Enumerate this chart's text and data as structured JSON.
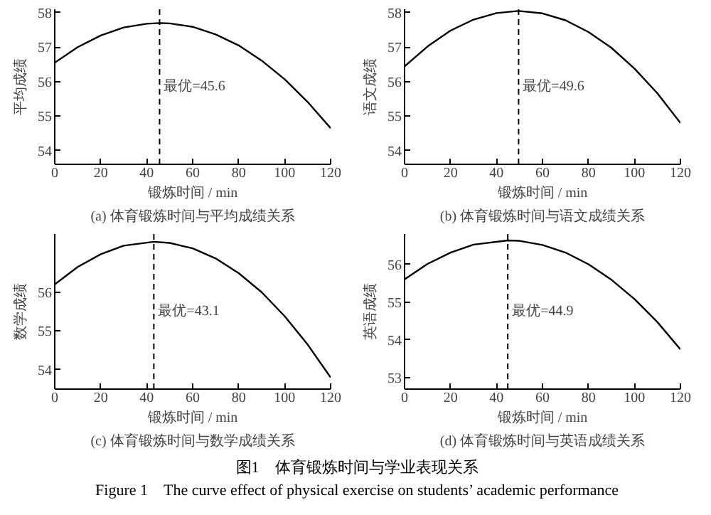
{
  "chart_data": [
    {
      "type": "line",
      "title": "(a) 体育锻炼时间与平均成绩关系",
      "xlabel": "锻炼时间 / min",
      "ylabel": "平均成绩",
      "x": [
        0,
        10,
        20,
        30,
        40,
        45.6,
        50,
        60,
        70,
        80,
        90,
        100,
        110,
        120
      ],
      "series": [
        {
          "color": "#000000",
          "values": [
            56.55,
            57.0,
            57.34,
            57.57,
            57.68,
            57.7,
            57.69,
            57.59,
            57.37,
            57.05,
            56.61,
            56.07,
            55.41,
            54.65
          ]
        }
      ],
      "xlim": [
        0,
        120
      ],
      "xticks": [
        0,
        20,
        40,
        60,
        80,
        100,
        120
      ],
      "ylim": [
        53.6,
        58.1
      ],
      "yticks": [
        54,
        55,
        56,
        57,
        58
      ],
      "ref_lines": [
        {
          "axis": "x",
          "value": 45.6,
          "label": "最优=45.6",
          "line_style": "dashed"
        }
      ],
      "grid": false,
      "line_style": "solid"
    },
    {
      "type": "line",
      "title": "(b) 体育锻炼时间与语文成绩关系",
      "xlabel": "锻炼时间 / min",
      "ylabel": "语文成绩",
      "x": [
        0,
        10,
        20,
        30,
        40,
        49.6,
        60,
        70,
        80,
        90,
        100,
        110,
        120
      ],
      "series": [
        {
          "color": "#000000",
          "values": [
            56.44,
            57.02,
            57.48,
            57.8,
            57.99,
            58.05,
            57.98,
            57.78,
            57.44,
            56.98,
            56.38,
            55.66,
            54.8
          ]
        }
      ],
      "xlim": [
        0,
        120
      ],
      "xticks": [
        0,
        20,
        40,
        60,
        80,
        100,
        120
      ],
      "ylim": [
        53.6,
        58.1
      ],
      "yticks": [
        54,
        55,
        56,
        57,
        58
      ],
      "ref_lines": [
        {
          "axis": "x",
          "value": 49.6,
          "label": "最优=49.6",
          "line_style": "dashed"
        }
      ],
      "grid": false,
      "line_style": "solid"
    },
    {
      "type": "line",
      "title": "(c) 体育锻炼时间与数学成绩关系",
      "xlabel": "锻炼时间 / min",
      "ylabel": "数学成绩",
      "x": [
        0,
        10,
        20,
        30,
        43.1,
        50,
        60,
        70,
        80,
        90,
        100,
        110,
        120
      ],
      "series": [
        {
          "color": "#000000",
          "values": [
            56.2,
            56.65,
            56.98,
            57.2,
            57.3,
            57.27,
            57.13,
            56.87,
            56.49,
            56.0,
            55.38,
            54.65,
            53.8
          ]
        }
      ],
      "xlim": [
        0,
        120
      ],
      "xticks": [
        0,
        20,
        40,
        60,
        80,
        100,
        120
      ],
      "ylim": [
        53.5,
        57.5
      ],
      "yticks": [
        54,
        55,
        56
      ],
      "ref_lines": [
        {
          "axis": "x",
          "value": 43.1,
          "label": "最优=43.1",
          "line_style": "dashed"
        }
      ],
      "grid": false,
      "line_style": "solid"
    },
    {
      "type": "line",
      "title": "(d) 体育锻炼时间与英语成绩关系",
      "xlabel": "锻炼时间 / min",
      "ylabel": "英语成绩",
      "x": [
        0,
        10,
        20,
        30,
        44.9,
        50,
        60,
        70,
        80,
        90,
        100,
        110,
        120
      ],
      "series": [
        {
          "color": "#000000",
          "values": [
            55.6,
            56.01,
            56.31,
            56.52,
            56.63,
            56.62,
            56.51,
            56.31,
            56.0,
            55.59,
            55.08,
            54.47,
            53.75
          ]
        }
      ],
      "xlim": [
        0,
        120
      ],
      "xticks": [
        0,
        20,
        40,
        60,
        80,
        100,
        120
      ],
      "ylim": [
        52.7,
        56.8
      ],
      "yticks": [
        53,
        54,
        55,
        56
      ],
      "ref_lines": [
        {
          "axis": "x",
          "value": 44.9,
          "label": "最优=44.9",
          "line_style": "dashed"
        }
      ],
      "grid": false,
      "line_style": "solid",
      "annotations": [
        "图1　体育锻炼时间与学业表现关系",
        "Figure 1　The curve effect of physical exercise on students’ academic performance"
      ]
    }
  ]
}
